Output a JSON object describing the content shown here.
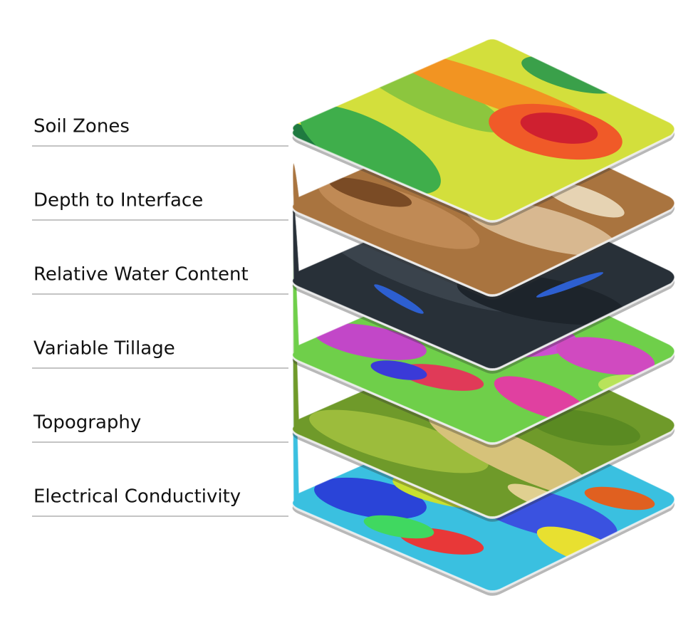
{
  "layers": [
    {
      "label": "Soil Zones"
    },
    {
      "label": "Depth to Interface"
    },
    {
      "label": "Relative Water Content"
    },
    {
      "label": "Variable Tillage"
    },
    {
      "label": "Topography"
    },
    {
      "label": "Electrical Conductivity"
    }
  ]
}
